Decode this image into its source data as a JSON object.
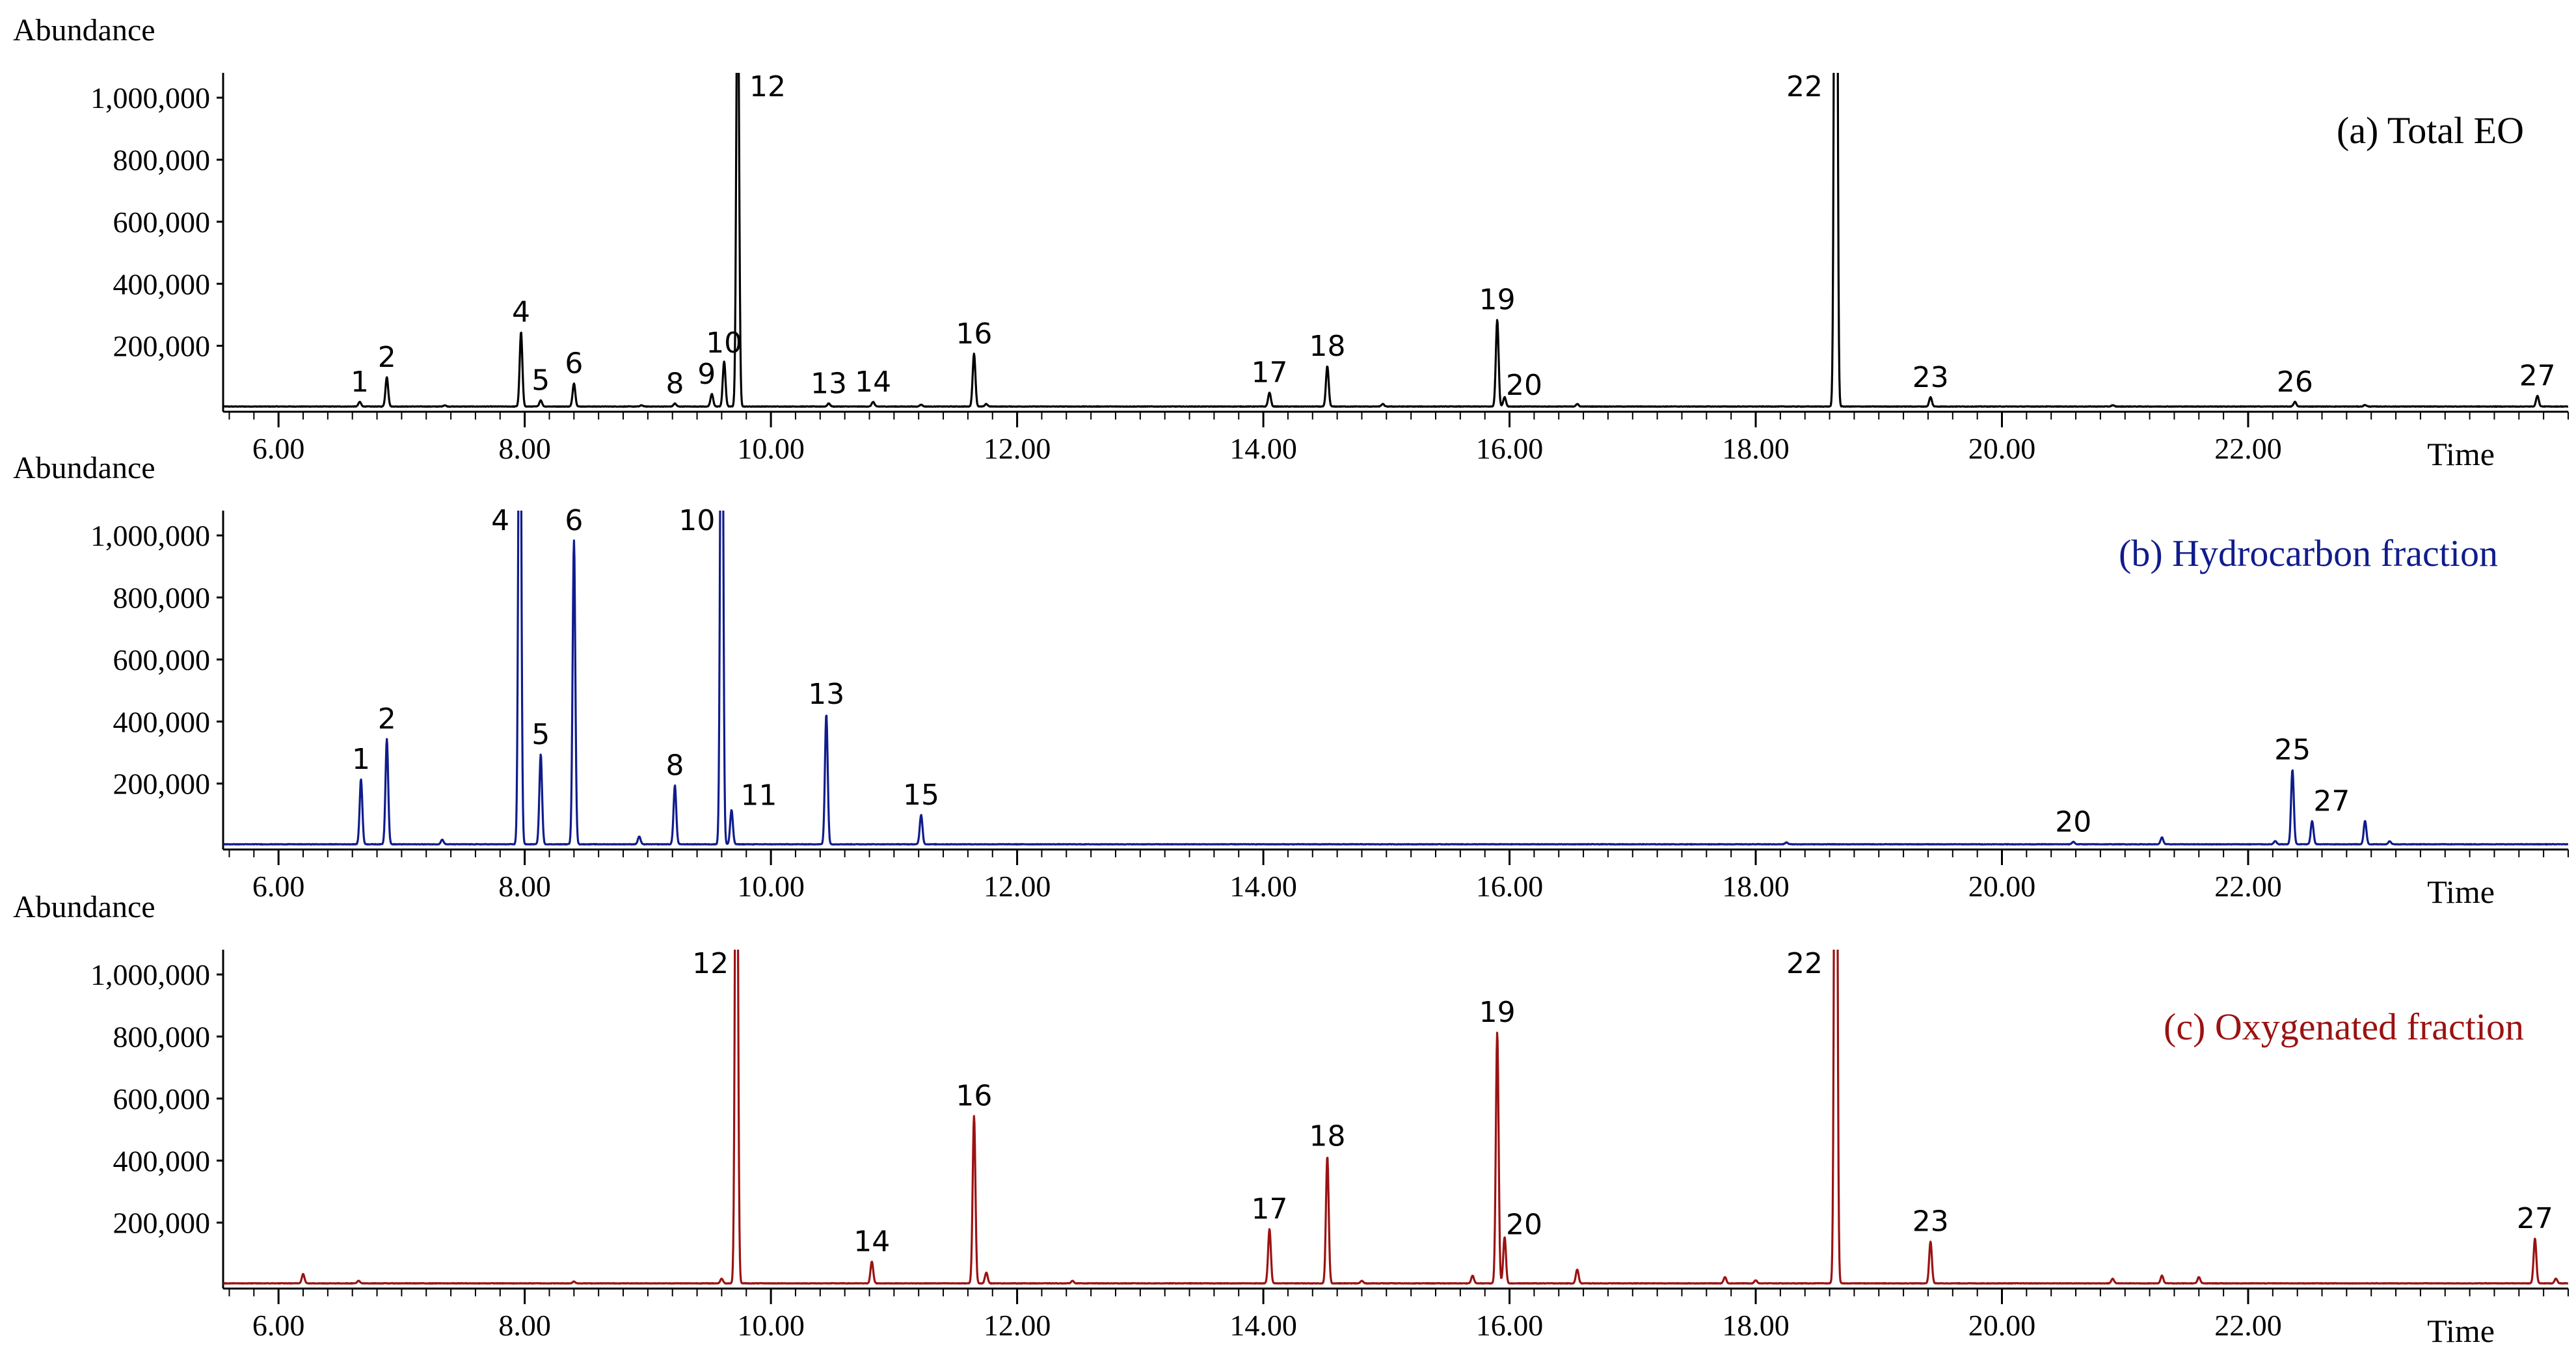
{
  "chart_data": [
    {
      "type": "line",
      "title": "(a) Total EO",
      "ylabel": "Abundance",
      "xlabel": "Time",
      "color": "#000000",
      "xlim": [
        5.55,
        24.6
      ],
      "ylim": [
        0,
        1080000
      ],
      "x_ticks": [
        "6.00",
        "8.00",
        "10.00",
        "12.00",
        "14.00",
        "16.00",
        "18.00",
        "20.00",
        "22.00"
      ],
      "y_ticks": [
        "200,000",
        "400,000",
        "600,000",
        "800,000",
        "1,000,000"
      ],
      "peaks": [
        {
          "x": 6.66,
          "y": 15000,
          "label": "1"
        },
        {
          "x": 6.88,
          "y": 95000,
          "label": "2"
        },
        {
          "x": 7.35,
          "y": 4000,
          "label": ""
        },
        {
          "x": 7.97,
          "y": 240000,
          "label": "4"
        },
        {
          "x": 8.13,
          "y": 20000,
          "label": "5"
        },
        {
          "x": 8.4,
          "y": 75000,
          "label": "6"
        },
        {
          "x": 8.95,
          "y": 4000,
          "label": ""
        },
        {
          "x": 9.22,
          "y": 10000,
          "label": "8"
        },
        {
          "x": 9.52,
          "y": 40000,
          "label": "9"
        },
        {
          "x": 9.62,
          "y": 145000,
          "label": "10"
        },
        {
          "x": 9.73,
          "y": 1500000,
          "label": "12"
        },
        {
          "x": 10.47,
          "y": 10000,
          "label": "13"
        },
        {
          "x": 10.83,
          "y": 15000,
          "label": "14"
        },
        {
          "x": 11.22,
          "y": 6000,
          "label": ""
        },
        {
          "x": 11.65,
          "y": 170000,
          "label": "16"
        },
        {
          "x": 11.75,
          "y": 8000,
          "label": ""
        },
        {
          "x": 14.05,
          "y": 45000,
          "label": "17"
        },
        {
          "x": 14.52,
          "y": 130000,
          "label": "18"
        },
        {
          "x": 14.97,
          "y": 8000,
          "label": ""
        },
        {
          "x": 15.9,
          "y": 280000,
          "label": "19"
        },
        {
          "x": 15.96,
          "y": 30000,
          "label": "20"
        },
        {
          "x": 16.55,
          "y": 8000,
          "label": ""
        },
        {
          "x": 18.65,
          "y": 3500000,
          "label": "22"
        },
        {
          "x": 19.42,
          "y": 30000,
          "label": "23"
        },
        {
          "x": 20.9,
          "y": 4000,
          "label": ""
        },
        {
          "x": 22.38,
          "y": 15000,
          "label": "26"
        },
        {
          "x": 22.95,
          "y": 5000,
          "label": ""
        },
        {
          "x": 24.35,
          "y": 35000,
          "label": "27"
        }
      ]
    },
    {
      "type": "line",
      "title": "(b) Hydrocarbon fraction",
      "ylabel": "Abundance",
      "xlabel": "Time",
      "color": "#101c8c",
      "xlim": [
        5.55,
        24.6
      ],
      "ylim": [
        0,
        1080000
      ],
      "x_ticks": [
        "6.00",
        "8.00",
        "10.00",
        "12.00",
        "14.00",
        "16.00",
        "18.00",
        "20.00",
        "22.00"
      ],
      "y_ticks": [
        "200,000",
        "400,000",
        "600,000",
        "800,000",
        "1,000,000"
      ],
      "peaks": [
        {
          "x": 6.67,
          "y": 210000,
          "label": "1"
        },
        {
          "x": 6.88,
          "y": 340000,
          "label": "2"
        },
        {
          "x": 7.33,
          "y": 15000,
          "label": ""
        },
        {
          "x": 7.96,
          "y": 2000000,
          "label": "4"
        },
        {
          "x": 8.13,
          "y": 290000,
          "label": "5"
        },
        {
          "x": 8.4,
          "y": 980000,
          "label": "6"
        },
        {
          "x": 8.93,
          "y": 25000,
          "label": ""
        },
        {
          "x": 9.22,
          "y": 190000,
          "label": "8"
        },
        {
          "x": 9.6,
          "y": 2200000,
          "label": "10"
        },
        {
          "x": 9.68,
          "y": 110000,
          "label": "11"
        },
        {
          "x": 10.45,
          "y": 420000,
          "label": "13"
        },
        {
          "x": 11.22,
          "y": 95000,
          "label": "15"
        },
        {
          "x": 18.25,
          "y": 6000,
          "label": ""
        },
        {
          "x": 20.58,
          "y": 8000,
          "label": "20"
        },
        {
          "x": 21.3,
          "y": 22000,
          "label": ""
        },
        {
          "x": 22.22,
          "y": 10000,
          "label": ""
        },
        {
          "x": 22.36,
          "y": 240000,
          "label": "25"
        },
        {
          "x": 22.52,
          "y": 75000,
          "label": "27"
        },
        {
          "x": 22.95,
          "y": 75000,
          "label": ""
        },
        {
          "x": 23.15,
          "y": 10000,
          "label": ""
        }
      ]
    },
    {
      "type": "line",
      "title": "(c) Oxygenated fraction",
      "ylabel": "Abundance",
      "xlabel": "Time",
      "color": "#9b1212",
      "xlim": [
        5.55,
        24.6
      ],
      "ylim": [
        0,
        1080000
      ],
      "x_ticks": [
        "6.00",
        "8.00",
        "10.00",
        "12.00",
        "14.00",
        "16.00",
        "18.00",
        "20.00",
        "22.00"
      ],
      "y_ticks": [
        "200,000",
        "400,000",
        "600,000",
        "800,000",
        "1,000,000"
      ],
      "peaks": [
        {
          "x": 6.2,
          "y": 30000,
          "label": ""
        },
        {
          "x": 6.65,
          "y": 8000,
          "label": ""
        },
        {
          "x": 8.4,
          "y": 6000,
          "label": ""
        },
        {
          "x": 9.6,
          "y": 15000,
          "label": ""
        },
        {
          "x": 9.72,
          "y": 2200000,
          "label": "12"
        },
        {
          "x": 10.82,
          "y": 70000,
          "label": "14"
        },
        {
          "x": 11.65,
          "y": 540000,
          "label": "16"
        },
        {
          "x": 11.75,
          "y": 35000,
          "label": ""
        },
        {
          "x": 12.45,
          "y": 8000,
          "label": ""
        },
        {
          "x": 14.05,
          "y": 175000,
          "label": "17"
        },
        {
          "x": 14.52,
          "y": 410000,
          "label": "18"
        },
        {
          "x": 14.8,
          "y": 8000,
          "label": ""
        },
        {
          "x": 15.7,
          "y": 25000,
          "label": ""
        },
        {
          "x": 15.9,
          "y": 810000,
          "label": "19"
        },
        {
          "x": 15.96,
          "y": 150000,
          "label": "20"
        },
        {
          "x": 16.55,
          "y": 45000,
          "label": ""
        },
        {
          "x": 17.75,
          "y": 20000,
          "label": ""
        },
        {
          "x": 18.0,
          "y": 10000,
          "label": ""
        },
        {
          "x": 18.65,
          "y": 3000000,
          "label": "22"
        },
        {
          "x": 19.42,
          "y": 135000,
          "label": "23"
        },
        {
          "x": 20.9,
          "y": 15000,
          "label": ""
        },
        {
          "x": 21.3,
          "y": 25000,
          "label": ""
        },
        {
          "x": 21.6,
          "y": 20000,
          "label": ""
        },
        {
          "x": 24.33,
          "y": 145000,
          "label": "27"
        },
        {
          "x": 24.5,
          "y": 15000,
          "label": ""
        }
      ]
    }
  ]
}
